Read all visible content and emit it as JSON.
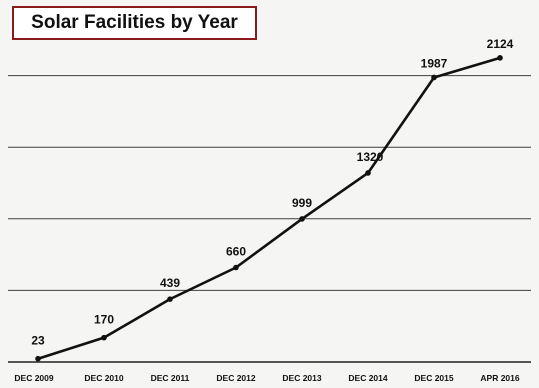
{
  "chart_data": {
    "type": "line",
    "title": "Solar Facilities by Year",
    "categories": [
      "DEC 2009",
      "DEC 2010",
      "DEC 2011",
      "DEC 2012",
      "DEC 2013",
      "DEC 2014",
      "DEC 2015",
      "APR 2016"
    ],
    "series": [
      {
        "values": [
          23,
          170,
          439,
          660,
          999,
          1320,
          1987,
          2124
        ]
      }
    ],
    "data_labels": [
      "23",
      "170",
      "439",
      "660",
      "999",
      "1320",
      "1987",
      "2124"
    ],
    "xlabel": "",
    "ylabel": "",
    "ylim": [
      0,
      2500
    ],
    "grid": true,
    "legend": "none",
    "colors": {
      "line": "#111111",
      "title_border": "#8b1a1a",
      "title_background": "#ffffff",
      "grid": "#3f3f3f"
    }
  }
}
